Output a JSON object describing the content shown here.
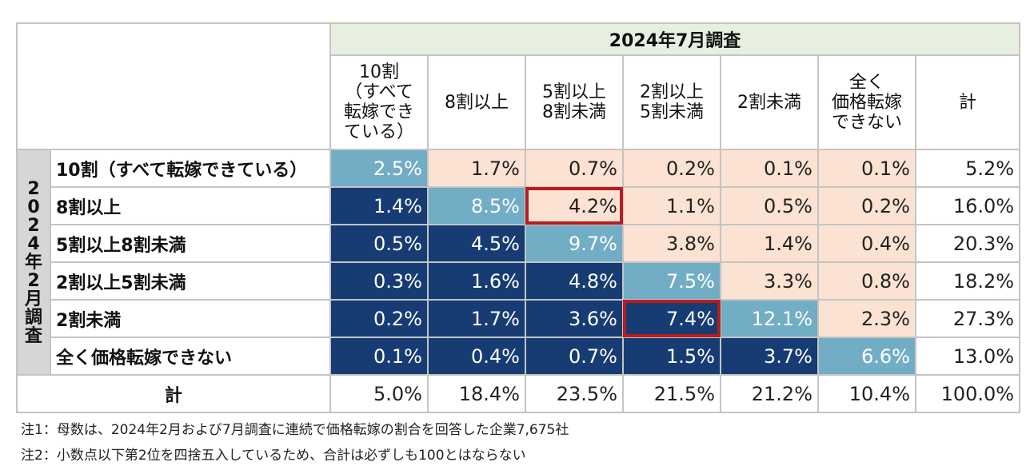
{
  "survey_header": "2024年7月調査",
  "row_axis_label": [
    "2",
    "0",
    "2",
    "4",
    "年",
    "2",
    "月",
    "調",
    "査"
  ],
  "column_headers": [
    "10割\n（すべて\n転嫁でき\nている）",
    "8割以上",
    "5割以上\n8割未満",
    "2割以上\n5割未満",
    "2割未満",
    "全く\n価格転嫁\nできない",
    "計"
  ],
  "colors": {
    "dark": "#173b73",
    "mid": "#72adc6",
    "light": "#fbe2d2",
    "highlight": "#b81c1c"
  },
  "chart_data": {
    "type": "table",
    "title": "",
    "row_labels": [
      "10割（すべて転嫁できている）",
      "8割以上",
      "5割以上8割未満",
      "2割以上5割未満",
      "2割未満",
      "全く価格転嫁できない",
      "計"
    ],
    "rows": [
      [
        "2.5%",
        "1.7%",
        "0.7%",
        "0.2%",
        "0.1%",
        "0.1%",
        "5.2%"
      ],
      [
        "1.4%",
        "8.5%",
        "4.2%",
        "1.1%",
        "0.5%",
        "0.2%",
        "16.0%"
      ],
      [
        "0.5%",
        "4.5%",
        "9.7%",
        "3.8%",
        "1.4%",
        "0.4%",
        "20.3%"
      ],
      [
        "0.3%",
        "1.6%",
        "4.8%",
        "7.5%",
        "3.3%",
        "0.8%",
        "18.2%"
      ],
      [
        "0.2%",
        "1.7%",
        "3.6%",
        "7.4%",
        "12.1%",
        "2.3%",
        "27.3%"
      ],
      [
        "0.1%",
        "0.4%",
        "0.7%",
        "1.5%",
        "3.7%",
        "6.6%",
        "13.0%"
      ],
      [
        "5.0%",
        "18.4%",
        "23.5%",
        "21.5%",
        "21.2%",
        "10.4%",
        "100.0%"
      ]
    ],
    "highlighted_cells": [
      [
        1,
        2
      ],
      [
        4,
        3
      ]
    ]
  },
  "notes": [
    "注1：母数は、2024年2月および7月調査に連続で価格転嫁の割合を回答した企業7,675社",
    "注2：小数点以下第2位を四捨五入しているため、合計は必ずしも100とはならない"
  ]
}
